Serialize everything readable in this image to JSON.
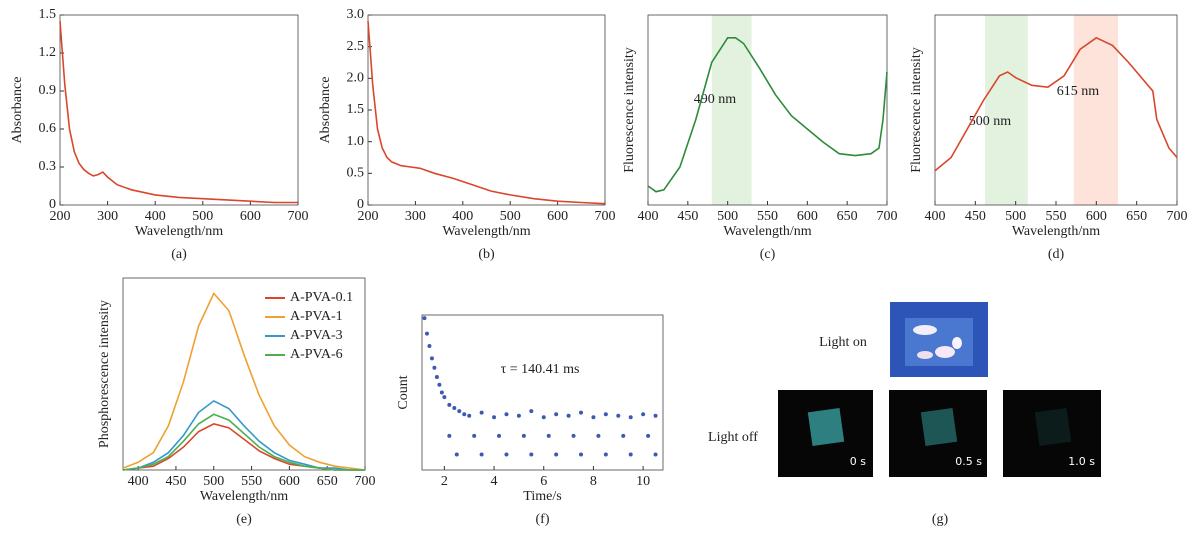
{
  "chart_data": [
    {
      "type": "line",
      "caption": "(a)",
      "xlabel": "Wavelength/nm",
      "ylabel": "Absorbance",
      "xlim": [
        200,
        700
      ],
      "ylim": [
        0,
        1.5
      ],
      "xticks": [
        200,
        300,
        400,
        500,
        600,
        700
      ],
      "yticks": [
        0,
        0.3,
        0.6,
        0.9,
        1.2,
        1.5
      ],
      "x": [
        200,
        205,
        210,
        220,
        230,
        240,
        250,
        260,
        270,
        280,
        290,
        300,
        320,
        350,
        400,
        450,
        500,
        550,
        600,
        650,
        700
      ],
      "series": [
        {
          "color": "#d9472b",
          "values": [
            1.45,
            1.2,
            0.95,
            0.6,
            0.42,
            0.33,
            0.28,
            0.25,
            0.23,
            0.24,
            0.26,
            0.22,
            0.16,
            0.12,
            0.08,
            0.06,
            0.05,
            0.04,
            0.03,
            0.02,
            0.02
          ]
        }
      ]
    },
    {
      "type": "line",
      "caption": "(b)",
      "xlabel": "Wavelength/nm",
      "ylabel": "Absorbance",
      "xlim": [
        200,
        700
      ],
      "ylim": [
        0,
        3
      ],
      "xticks": [
        200,
        300,
        400,
        500,
        600,
        700
      ],
      "yticks": [
        0,
        0.5,
        {
          "value": 1,
          "label": "1.0"
        },
        1.5,
        {
          "value": 2,
          "label": "2.0"
        },
        2.5,
        {
          "value": 3,
          "label": "3.0"
        }
      ],
      "x": [
        200,
        205,
        210,
        220,
        230,
        240,
        250,
        270,
        290,
        310,
        340,
        380,
        420,
        460,
        500,
        550,
        600,
        650,
        700
      ],
      "series": [
        {
          "color": "#d9472b",
          "values": [
            2.9,
            2.4,
            1.9,
            1.2,
            0.9,
            0.75,
            0.68,
            0.62,
            0.6,
            0.58,
            0.5,
            0.42,
            0.32,
            0.22,
            0.16,
            0.1,
            0.06,
            0.04,
            0.02
          ]
        }
      ]
    },
    {
      "type": "line",
      "caption": "(c)",
      "xlabel": "Wavelength/nm",
      "ylabel": "Fluorescence intensity",
      "xlim": [
        400,
        700
      ],
      "ylim": [
        0,
        1
      ],
      "xticks": [
        400,
        450,
        500,
        550,
        600,
        650,
        700
      ],
      "bands": [
        {
          "range": [
            480,
            530
          ],
          "color": "#e3f2df"
        }
      ],
      "annotations": [
        "490 nm"
      ],
      "x": [
        400,
        410,
        420,
        440,
        460,
        480,
        500,
        510,
        520,
        540,
        560,
        580,
        600,
        620,
        640,
        660,
        680,
        690,
        695,
        700
      ],
      "series": [
        {
          "color": "#2e8b3a",
          "values": [
            0.1,
            0.07,
            0.08,
            0.2,
            0.45,
            0.75,
            0.88,
            0.88,
            0.85,
            0.72,
            0.58,
            0.47,
            0.4,
            0.33,
            0.27,
            0.26,
            0.27,
            0.3,
            0.45,
            0.7
          ]
        }
      ]
    },
    {
      "type": "line",
      "caption": "(d)",
      "xlabel": "Wavelength/nm",
      "ylabel": "Fluorescence intensity",
      "xlim": [
        400,
        700
      ],
      "ylim": [
        0,
        1
      ],
      "xticks": [
        400,
        450,
        500,
        550,
        600,
        650,
        700
      ],
      "bands": [
        {
          "range": [
            462,
            515
          ],
          "color": "#e3f2df"
        },
        {
          "range": [
            572,
            627
          ],
          "color": "#fde3da"
        }
      ],
      "annotations": [
        "500 nm",
        "615 nm"
      ],
      "x": [
        400,
        420,
        440,
        460,
        480,
        490,
        500,
        520,
        540,
        560,
        580,
        600,
        620,
        640,
        660,
        670,
        675,
        690,
        700
      ],
      "series": [
        {
          "color": "#d9472b",
          "values": [
            0.18,
            0.25,
            0.4,
            0.55,
            0.68,
            0.7,
            0.67,
            0.63,
            0.62,
            0.68,
            0.82,
            0.88,
            0.84,
            0.75,
            0.65,
            0.6,
            0.45,
            0.3,
            0.25
          ]
        }
      ]
    },
    {
      "type": "line",
      "caption": "(e)",
      "xlabel": "Wavelength/nm",
      "ylabel": "Phosphorescence intensity",
      "xlim": [
        380,
        700
      ],
      "ylim": [
        0,
        1
      ],
      "xticks": [
        400,
        450,
        500,
        550,
        600,
        650,
        700
      ],
      "legend": "upper right",
      "x": [
        380,
        400,
        420,
        440,
        460,
        480,
        500,
        520,
        540,
        560,
        580,
        600,
        620,
        640,
        660,
        680,
        700
      ],
      "series": [
        {
          "name": "A-PVA-0.1",
          "color": "#d9472b",
          "values": [
            0,
            0.01,
            0.02,
            0.06,
            0.12,
            0.2,
            0.24,
            0.22,
            0.16,
            0.1,
            0.06,
            0.03,
            0.02,
            0.01,
            0,
            0,
            0
          ]
        },
        {
          "name": "A-PVA-1",
          "color": "#f0a030",
          "values": [
            0.01,
            0.04,
            0.09,
            0.23,
            0.46,
            0.75,
            0.92,
            0.83,
            0.6,
            0.39,
            0.23,
            0.13,
            0.07,
            0.04,
            0.02,
            0.01,
            0
          ]
        },
        {
          "name": "A-PVA-3",
          "color": "#3399cc",
          "values": [
            0,
            0.01,
            0.04,
            0.09,
            0.18,
            0.3,
            0.36,
            0.32,
            0.23,
            0.15,
            0.09,
            0.05,
            0.03,
            0.01,
            0.01,
            0,
            0
          ]
        },
        {
          "name": "A-PVA-6",
          "color": "#4caf50",
          "values": [
            0,
            0.01,
            0.03,
            0.07,
            0.15,
            0.24,
            0.29,
            0.26,
            0.19,
            0.12,
            0.07,
            0.04,
            0.02,
            0.01,
            0,
            0,
            0
          ]
        }
      ]
    },
    {
      "type": "scatter",
      "caption": "(f)",
      "xlabel": "Time/s",
      "ylabel": "Count",
      "xlim": [
        1.1,
        10.8
      ],
      "ylim": [
        0,
        1
      ],
      "xticks": [
        2,
        4,
        6,
        8,
        10
      ],
      "annotations": [
        "τ = 140.41 ms"
      ],
      "x": [
        1.2,
        1.3,
        1.4,
        1.5,
        1.6,
        1.7,
        1.8,
        1.9,
        2.0,
        2.2,
        2.4,
        2.6,
        2.8,
        3.0,
        3.5,
        4.0,
        4.5,
        5.0,
        5.5,
        6.0,
        6.5,
        7.0,
        7.5,
        8.0,
        8.5,
        9.0,
        9.5,
        10.0,
        10.5,
        2.5,
        3.5,
        4.5,
        5.5,
        6.5,
        7.5,
        8.5,
        9.5,
        10.5,
        2.2,
        3.2,
        4.2,
        5.2,
        6.2,
        7.2,
        8.2,
        9.2,
        10.2
      ],
      "series": [
        {
          "color": "#3a5bb0",
          "values": [
            0.98,
            0.88,
            0.8,
            0.72,
            0.66,
            0.6,
            0.55,
            0.5,
            0.47,
            0.42,
            0.4,
            0.38,
            0.36,
            0.35,
            0.37,
            0.34,
            0.36,
            0.35,
            0.38,
            0.34,
            0.36,
            0.35,
            0.37,
            0.34,
            0.36,
            0.35,
            0.34,
            0.36,
            0.35,
            0.1,
            0.1,
            0.1,
            0.1,
            0.1,
            0.1,
            0.1,
            0.1,
            0.1,
            0.22,
            0.22,
            0.22,
            0.22,
            0.22,
            0.22,
            0.22,
            0.22,
            0.22
          ]
        }
      ]
    }
  ],
  "photos": {
    "caption": "(g)",
    "light_on": "Light on",
    "light_off": "Light off",
    "times": [
      "0 s",
      "0.5 s",
      "1.0 s"
    ]
  }
}
